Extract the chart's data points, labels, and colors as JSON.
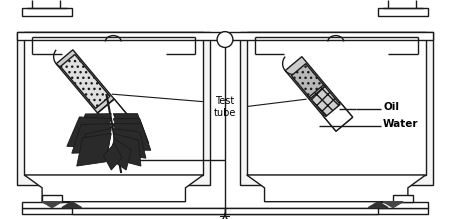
{
  "bg_color": "#ffffff",
  "line_color": "#1a1a1a",
  "line_width": 1.0,
  "fig_width": 4.5,
  "fig_height": 2.19,
  "labels": {
    "test_tube": "Test\ntube",
    "oil": "Oil",
    "water": "Water"
  }
}
